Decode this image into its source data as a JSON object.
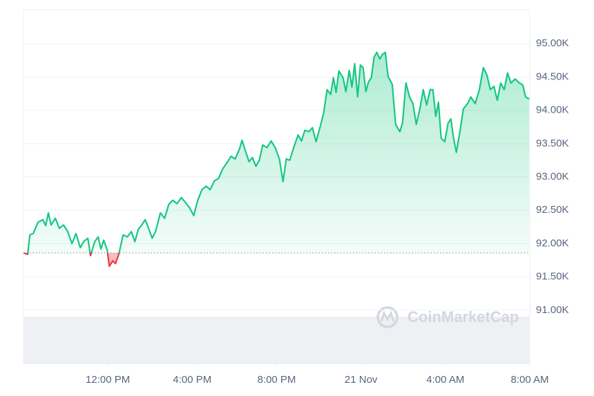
{
  "chart_data": {
    "type": "area",
    "watermark": "CoinMarketCap",
    "up_color": "#16c784",
    "down_color": "#ea3943",
    "baseline": 91860,
    "grid": true,
    "xlim": [
      8,
      32
    ],
    "ylim": [
      90190,
      95510
    ],
    "xticks": [
      {
        "value": 12,
        "label": "12:00 PM"
      },
      {
        "value": 16,
        "label": "4:00 PM"
      },
      {
        "value": 20,
        "label": "8:00 PM"
      },
      {
        "value": 24,
        "label": "21 Nov"
      },
      {
        "value": 28,
        "label": "4:00 AM"
      },
      {
        "value": 32,
        "label": "8:00 AM"
      }
    ],
    "yticks": [
      {
        "value": 91000,
        "label": "91.00K"
      },
      {
        "value": 91500,
        "label": "91.50K"
      },
      {
        "value": 92000,
        "label": "92.00K"
      },
      {
        "value": 92500,
        "label": "92.50K"
      },
      {
        "value": 93000,
        "label": "93.00K"
      },
      {
        "value": 93500,
        "label": "93.50K"
      },
      {
        "value": 94000,
        "label": "94.00K"
      },
      {
        "value": 94500,
        "label": "94.50K"
      },
      {
        "value": 95000,
        "label": "95.00K"
      }
    ],
    "x": [
      8.0,
      8.2,
      8.3,
      8.46,
      8.69,
      8.92,
      9.05,
      9.18,
      9.31,
      9.51,
      9.7,
      9.9,
      10.1,
      10.3,
      10.49,
      10.69,
      10.85,
      11.05,
      11.18,
      11.38,
      11.54,
      11.67,
      11.8,
      11.97,
      12.07,
      12.23,
      12.36,
      12.52,
      12.72,
      12.92,
      13.11,
      13.28,
      13.44,
      13.61,
      13.77,
      13.93,
      14.1,
      14.26,
      14.49,
      14.69,
      14.89,
      15.08,
      15.28,
      15.48,
      15.67,
      15.87,
      16.07,
      16.26,
      16.46,
      16.66,
      16.85,
      17.05,
      17.25,
      17.44,
      17.64,
      17.84,
      18.03,
      18.23,
      18.36,
      18.52,
      18.69,
      18.85,
      19.02,
      19.18,
      19.34,
      19.54,
      19.74,
      19.93,
      20.13,
      20.3,
      20.46,
      20.62,
      20.82,
      21.02,
      21.18,
      21.34,
      21.54,
      21.7,
      21.87,
      22.07,
      22.23,
      22.39,
      22.56,
      22.69,
      22.82,
      22.95,
      23.15,
      23.28,
      23.44,
      23.57,
      23.7,
      23.84,
      23.97,
      24.1,
      24.23,
      24.36,
      24.49,
      24.62,
      24.75,
      24.89,
      25.02,
      25.15,
      25.28,
      25.48,
      25.64,
      25.84,
      25.97,
      26.13,
      26.3,
      26.46,
      26.62,
      26.79,
      26.95,
      27.11,
      27.28,
      27.41,
      27.54,
      27.67,
      27.8,
      27.97,
      28.13,
      28.26,
      28.39,
      28.52,
      28.69,
      28.85,
      29.05,
      29.21,
      29.41,
      29.61,
      29.8,
      29.97,
      30.13,
      30.3,
      30.46,
      30.62,
      30.79,
      30.95,
      31.11,
      31.31,
      31.51,
      31.67,
      31.8,
      31.97
    ],
    "values": [
      91860,
      91840,
      92130,
      92150,
      92320,
      92360,
      92270,
      92460,
      92280,
      92380,
      92230,
      92280,
      92180,
      92000,
      92150,
      91940,
      92030,
      92080,
      91820,
      92030,
      92100,
      91920,
      92050,
      91900,
      91660,
      91740,
      91700,
      91840,
      92130,
      92100,
      92180,
      92030,
      92210,
      92280,
      92360,
      92230,
      92080,
      92180,
      92460,
      92380,
      92590,
      92650,
      92600,
      92690,
      92620,
      92540,
      92420,
      92650,
      92810,
      92860,
      92810,
      92940,
      92980,
      93120,
      93210,
      93310,
      93270,
      93410,
      93550,
      93390,
      93230,
      93290,
      93160,
      93250,
      93480,
      93440,
      93540,
      93440,
      93270,
      92930,
      93270,
      93250,
      93450,
      93630,
      93540,
      93700,
      93680,
      93740,
      93530,
      93760,
      93960,
      94310,
      94240,
      94490,
      94270,
      94590,
      94490,
      94280,
      94600,
      94350,
      94700,
      94200,
      94680,
      94640,
      94280,
      94430,
      94490,
      94800,
      94870,
      94770,
      94840,
      94870,
      94510,
      94390,
      93790,
      93680,
      93810,
      94410,
      94200,
      94100,
      93790,
      94020,
      94310,
      94080,
      94310,
      94310,
      93910,
      94120,
      93580,
      93530,
      93810,
      93870,
      93580,
      93370,
      93680,
      94020,
      94100,
      94200,
      94100,
      94310,
      94640,
      94530,
      94310,
      94360,
      94150,
      94410,
      94310,
      94560,
      94410,
      94470,
      94410,
      94380,
      94200,
      94170
    ]
  }
}
